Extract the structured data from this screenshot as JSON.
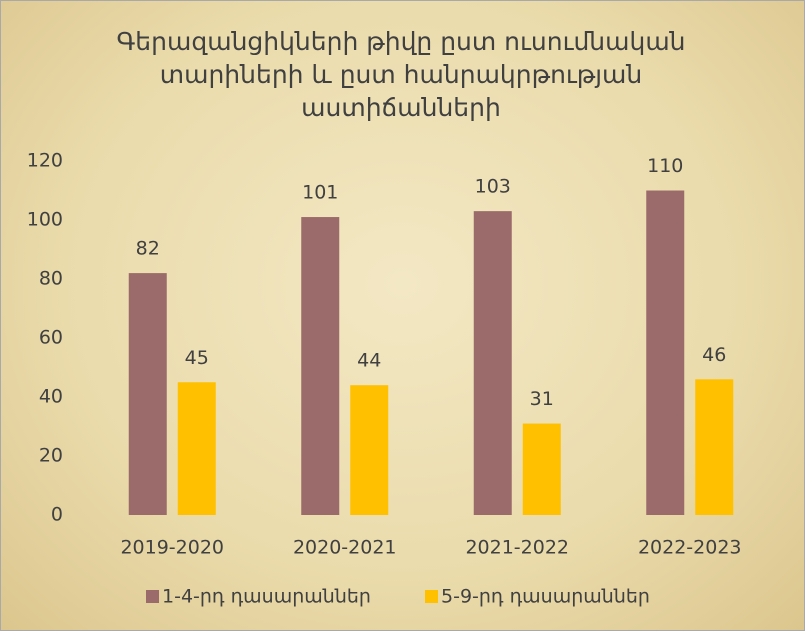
{
  "chart_data": {
    "type": "bar",
    "title": "Գերազանցիկների թիվը ըստ ուսումնական տարիների և ըստ հանրակրթության աստիճանների",
    "categories": [
      "2019-2020",
      "2020-2021",
      "2021-2022",
      "2022-2023"
    ],
    "series": [
      {
        "name": "1-4-րդ դասարաններ",
        "color": "#9b6a6a",
        "values": [
          82,
          101,
          103,
          110
        ]
      },
      {
        "name": "5-9-րդ դասարաններ",
        "color": "#ffc000",
        "values": [
          45,
          44,
          31,
          46
        ]
      }
    ],
    "ylim": [
      0,
      120
    ],
    "yticks": [
      0,
      20,
      40,
      60,
      80,
      100,
      120
    ],
    "grid": false,
    "legend": "bottom"
  }
}
